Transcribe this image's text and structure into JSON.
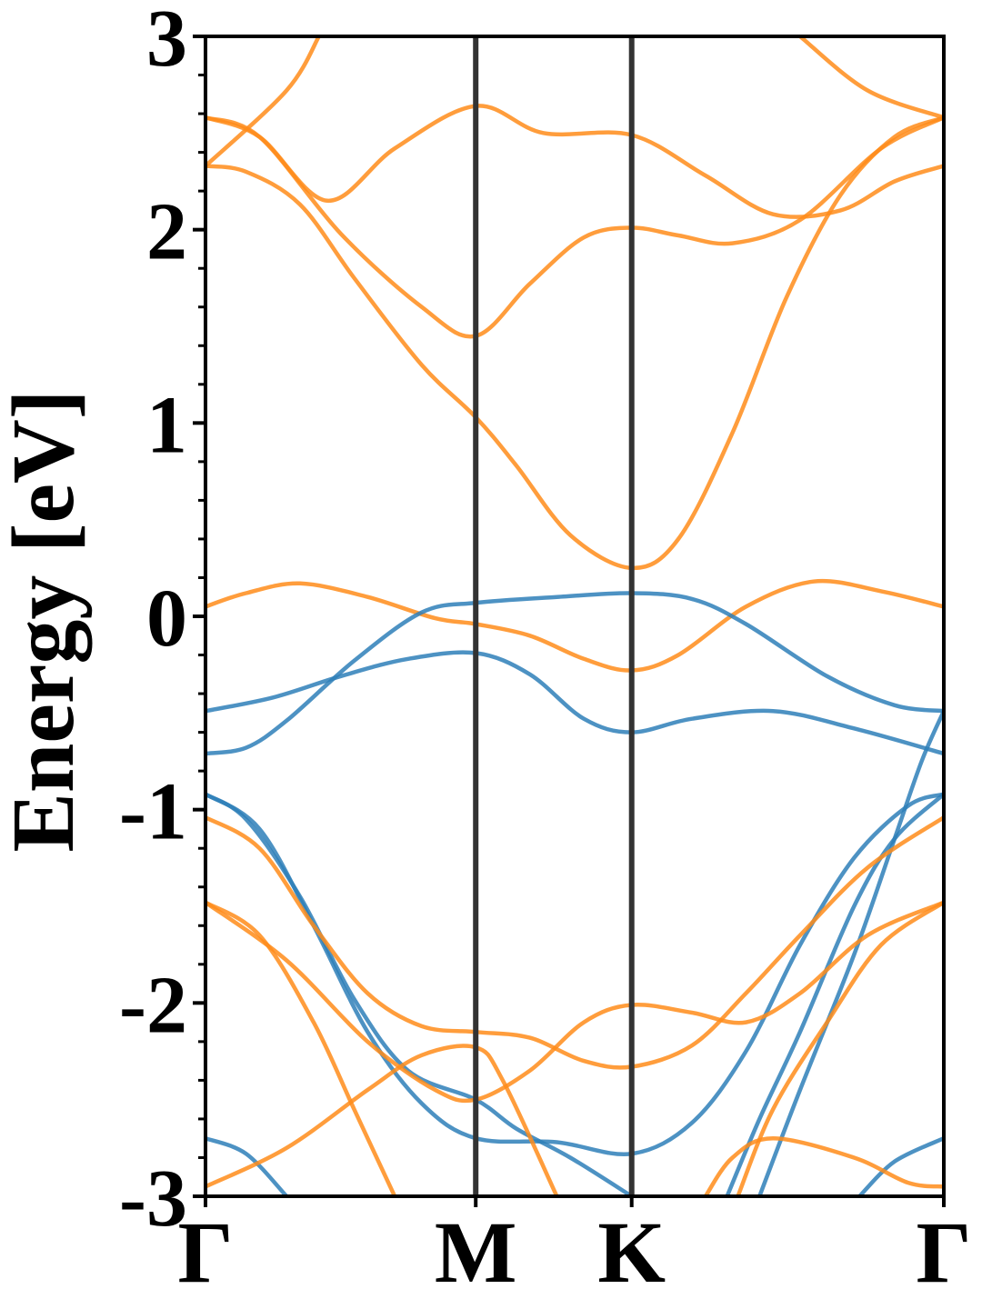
{
  "chart_data": {
    "type": "line",
    "title": "",
    "ylabel": "Energy [eV]",
    "xlabel": "",
    "ylim": [
      -3,
      3
    ],
    "yticks": [
      "-3",
      "-2",
      "-1",
      "0",
      "1",
      "2",
      "3"
    ],
    "xlim": [
      0,
      2.732
    ],
    "kpoints": [
      {
        "label": "Γ",
        "x": 0
      },
      {
        "label": "M",
        "x": 1.0
      },
      {
        "label": "K",
        "x": 1.577
      },
      {
        "label": "Γ",
        "x": 2.732
      }
    ],
    "grid": false,
    "colors": {
      "series_orange": "#ff8c1a",
      "series_blue": "#2e7fb8",
      "kline": "#333333"
    },
    "series": [
      {
        "values": [
          [
            0,
            2.33
          ],
          [
            0.3,
            2.72
          ],
          [
            0.42,
            3.0
          ]
        ]
      },
      {
        "values": [
          [
            0,
            2.58
          ],
          [
            0.2,
            2.48
          ],
          [
            0.5,
            1.98
          ],
          [
            0.8,
            1.6
          ],
          [
            1.0,
            1.45
          ],
          [
            1.2,
            1.72
          ],
          [
            1.4,
            1.96
          ],
          [
            1.577,
            2.01
          ],
          [
            1.75,
            1.97
          ],
          [
            1.95,
            1.93
          ],
          [
            2.2,
            2.05
          ],
          [
            2.5,
            2.42
          ],
          [
            2.732,
            2.58
          ]
        ]
      },
      {
        "values": [
          [
            0,
            2.58
          ],
          [
            0.2,
            2.48
          ],
          [
            0.45,
            2.15
          ],
          [
            0.7,
            2.42
          ],
          [
            1.0,
            2.64
          ],
          [
            1.25,
            2.5
          ],
          [
            1.577,
            2.49
          ],
          [
            1.85,
            2.28
          ],
          [
            2.1,
            2.08
          ],
          [
            2.35,
            2.1
          ],
          [
            2.55,
            2.25
          ],
          [
            2.732,
            2.33
          ]
        ]
      },
      {
        "values": [
          [
            0,
            2.33
          ],
          [
            0.15,
            2.3
          ],
          [
            0.35,
            2.13
          ],
          [
            0.55,
            1.75
          ],
          [
            0.8,
            1.3
          ],
          [
            1.0,
            1.03
          ],
          [
            1.15,
            0.78
          ],
          [
            1.35,
            0.42
          ],
          [
            1.577,
            0.25
          ],
          [
            1.75,
            0.4
          ],
          [
            1.95,
            0.95
          ],
          [
            2.15,
            1.65
          ],
          [
            2.35,
            2.18
          ],
          [
            2.55,
            2.48
          ],
          [
            2.732,
            2.58
          ]
        ]
      },
      {
        "values": [
          [
            2.2,
            3.0
          ],
          [
            2.45,
            2.72
          ],
          [
            2.732,
            2.58
          ]
        ]
      },
      {
        "values": [
          [
            0,
            0.05
          ],
          [
            0.15,
            0.12
          ],
          [
            0.35,
            0.17
          ],
          [
            0.6,
            0.1
          ],
          [
            0.85,
            -0.01
          ],
          [
            1.0,
            -0.04
          ],
          [
            1.2,
            -0.1
          ],
          [
            1.4,
            -0.22
          ],
          [
            1.577,
            -0.28
          ],
          [
            1.75,
            -0.2
          ],
          [
            2.0,
            0.05
          ],
          [
            2.25,
            0.18
          ],
          [
            2.5,
            0.13
          ],
          [
            2.732,
            0.05
          ]
        ]
      },
      {
        "values": [
          [
            0,
            -0.49
          ],
          [
            0.25,
            -0.42
          ],
          [
            0.5,
            -0.31
          ],
          [
            0.75,
            -0.22
          ],
          [
            1.0,
            -0.19
          ],
          [
            1.2,
            -0.3
          ],
          [
            1.4,
            -0.53
          ],
          [
            1.577,
            -0.6
          ],
          [
            1.8,
            -0.53
          ],
          [
            2.1,
            -0.49
          ],
          [
            2.4,
            -0.58
          ],
          [
            2.732,
            -0.71
          ]
        ]
      },
      {
        "values": [
          [
            0,
            -0.71
          ],
          [
            0.15,
            -0.68
          ],
          [
            0.3,
            -0.54
          ],
          [
            0.55,
            -0.23
          ],
          [
            0.8,
            0.02
          ],
          [
            1.0,
            0.07
          ],
          [
            1.3,
            0.1
          ],
          [
            1.577,
            0.12
          ],
          [
            1.8,
            0.09
          ],
          [
            2.0,
            -0.04
          ],
          [
            2.3,
            -0.31
          ],
          [
            2.55,
            -0.46
          ],
          [
            2.732,
            -0.49
          ]
        ]
      },
      {
        "values": [
          [
            0,
            -0.92
          ],
          [
            0.15,
            -1.05
          ],
          [
            0.35,
            -1.45
          ],
          [
            0.55,
            -1.98
          ],
          [
            0.75,
            -2.35
          ],
          [
            1.0,
            -2.5
          ],
          [
            1.15,
            -2.65
          ],
          [
            1.35,
            -2.8
          ],
          [
            1.577,
            -3.0
          ]
        ]
      },
      {
        "values": [
          [
            0,
            -0.92
          ],
          [
            0.2,
            -1.1
          ],
          [
            0.4,
            -1.6
          ],
          [
            0.6,
            -2.15
          ],
          [
            0.8,
            -2.52
          ],
          [
            1.0,
            -2.7
          ],
          [
            1.3,
            -2.72
          ],
          [
            1.577,
            -2.78
          ],
          [
            1.8,
            -2.62
          ],
          [
            2.0,
            -2.25
          ],
          [
            2.2,
            -1.7
          ],
          [
            2.4,
            -1.25
          ],
          [
            2.6,
            -0.98
          ],
          [
            2.732,
            -0.92
          ]
        ]
      },
      {
        "values": [
          [
            1.93,
            -3.0
          ],
          [
            2.05,
            -2.6
          ],
          [
            2.2,
            -2.15
          ],
          [
            2.4,
            -1.5
          ],
          [
            2.55,
            -1.15
          ],
          [
            2.732,
            -0.92
          ]
        ]
      },
      {
        "values": [
          [
            2.05,
            -3.0
          ],
          [
            2.2,
            -2.45
          ],
          [
            2.4,
            -1.75
          ],
          [
            2.55,
            -1.15
          ],
          [
            2.65,
            -0.75
          ],
          [
            2.732,
            -0.49
          ]
        ]
      },
      {
        "values": [
          [
            0,
            -2.7
          ],
          [
            0.15,
            -2.78
          ],
          [
            0.3,
            -3.0
          ]
        ]
      },
      {
        "values": [
          [
            2.42,
            -3.0
          ],
          [
            2.55,
            -2.82
          ],
          [
            2.732,
            -2.7
          ]
        ]
      },
      {
        "values": [
          [
            0,
            -1.04
          ],
          [
            0.2,
            -1.2
          ],
          [
            0.4,
            -1.6
          ],
          [
            0.6,
            -1.95
          ],
          [
            0.8,
            -2.12
          ],
          [
            1.0,
            -2.15
          ],
          [
            1.2,
            -2.18
          ],
          [
            1.4,
            -2.3
          ],
          [
            1.577,
            -2.33
          ],
          [
            1.8,
            -2.22
          ],
          [
            2.0,
            -1.95
          ],
          [
            2.2,
            -1.65
          ],
          [
            2.45,
            -1.3
          ],
          [
            2.732,
            -1.04
          ]
        ]
      },
      {
        "values": [
          [
            0,
            -1.48
          ],
          [
            0.3,
            -1.78
          ],
          [
            0.6,
            -2.2
          ],
          [
            0.85,
            -2.45
          ],
          [
            1.0,
            -2.5
          ],
          [
            1.2,
            -2.35
          ],
          [
            1.4,
            -2.1
          ],
          [
            1.577,
            -2.01
          ],
          [
            1.8,
            -2.05
          ],
          [
            2.0,
            -2.1
          ],
          [
            2.2,
            -1.95
          ],
          [
            2.45,
            -1.65
          ],
          [
            2.732,
            -1.48
          ]
        ]
      },
      {
        "values": [
          [
            0,
            -1.48
          ],
          [
            0.2,
            -1.65
          ],
          [
            0.4,
            -2.1
          ],
          [
            0.55,
            -2.55
          ],
          [
            0.7,
            -3.0
          ]
        ]
      },
      {
        "values": [
          [
            0,
            -2.95
          ],
          [
            0.3,
            -2.75
          ],
          [
            0.6,
            -2.45
          ],
          [
            0.8,
            -2.27
          ],
          [
            1.0,
            -2.23
          ],
          [
            1.1,
            -2.4
          ],
          [
            1.3,
            -3.0
          ]
        ]
      },
      {
        "values": [
          [
            1.85,
            -3.0
          ],
          [
            1.95,
            -2.8
          ],
          [
            2.1,
            -2.7
          ],
          [
            2.4,
            -2.8
          ],
          [
            2.6,
            -2.93
          ],
          [
            2.732,
            -2.95
          ]
        ]
      },
      {
        "values": [
          [
            1.97,
            -3.0
          ],
          [
            2.1,
            -2.55
          ],
          [
            2.3,
            -2.1
          ],
          [
            2.5,
            -1.7
          ],
          [
            2.732,
            -1.48
          ]
        ]
      }
    ]
  }
}
